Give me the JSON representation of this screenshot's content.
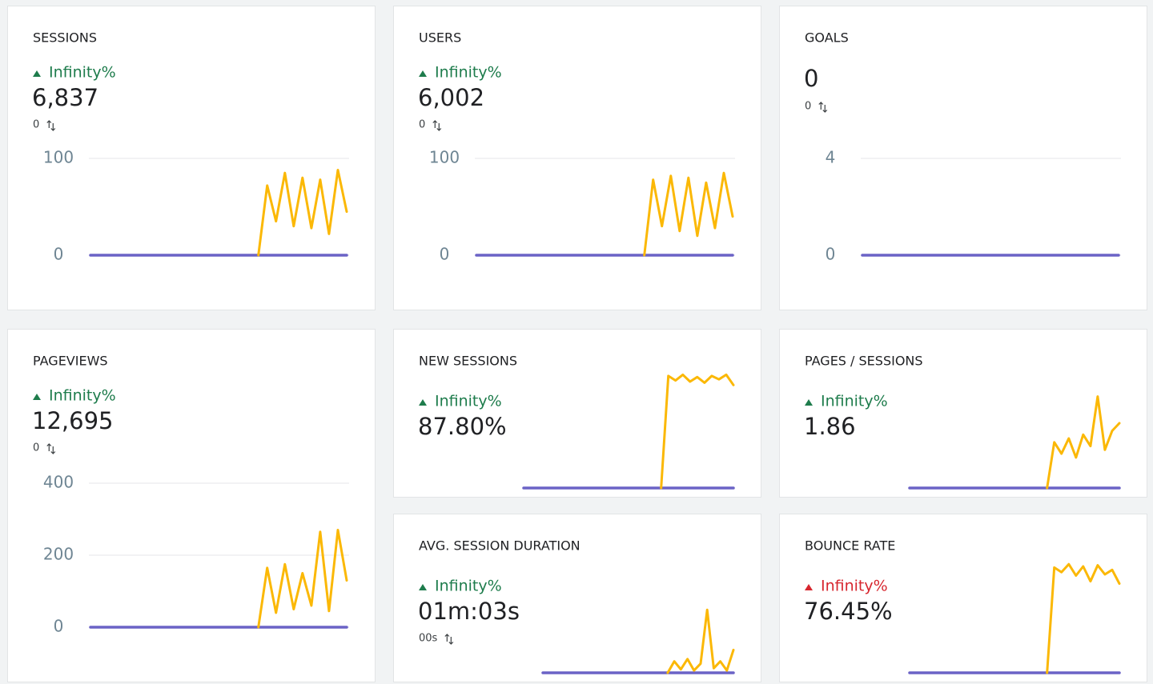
{
  "chart_data": [
    {
      "type": "line",
      "title": "SESSIONS",
      "change": "Infinity%",
      "change_direction": "up",
      "value": "6,837",
      "compare": "0",
      "ylim": [
        0,
        100
      ],
      "yticks": [
        0,
        100
      ],
      "series": [
        {
          "color": "#6b63c6",
          "values": [
            0,
            0,
            0,
            0,
            0,
            0,
            0,
            0,
            0,
            0,
            0,
            0,
            0,
            0,
            0,
            0,
            0,
            0,
            0,
            0,
            0,
            0,
            0,
            0,
            0,
            0,
            0,
            0,
            0,
            0
          ]
        },
        {
          "color": "#fbb806",
          "values": [
            null,
            null,
            null,
            null,
            null,
            null,
            null,
            null,
            null,
            null,
            null,
            null,
            null,
            null,
            null,
            null,
            null,
            null,
            null,
            0,
            72,
            35,
            85,
            30,
            80,
            28,
            78,
            22,
            88,
            45
          ]
        }
      ]
    },
    {
      "type": "line",
      "title": "USERS",
      "change": "Infinity%",
      "change_direction": "up",
      "value": "6,002",
      "compare": "0",
      "ylim": [
        0,
        100
      ],
      "yticks": [
        0,
        100
      ],
      "series": [
        {
          "color": "#6b63c6",
          "values": [
            0,
            0,
            0,
            0,
            0,
            0,
            0,
            0,
            0,
            0,
            0,
            0,
            0,
            0,
            0,
            0,
            0,
            0,
            0,
            0,
            0,
            0,
            0,
            0,
            0,
            0,
            0,
            0,
            0,
            0
          ]
        },
        {
          "color": "#fbb806",
          "values": [
            null,
            null,
            null,
            null,
            null,
            null,
            null,
            null,
            null,
            null,
            null,
            null,
            null,
            null,
            null,
            null,
            null,
            null,
            null,
            0,
            78,
            30,
            82,
            25,
            80,
            20,
            75,
            28,
            85,
            40
          ]
        }
      ]
    },
    {
      "type": "line",
      "title": "GOALS",
      "value": "0",
      "compare": "0",
      "ylim": [
        0,
        4
      ],
      "yticks": [
        0,
        4
      ],
      "series": [
        {
          "color": "#6b63c6",
          "values": [
            0,
            0,
            0,
            0,
            0,
            0,
            0,
            0,
            0,
            0,
            0,
            0,
            0,
            0,
            0,
            0,
            0,
            0,
            0,
            0,
            0,
            0,
            0,
            0,
            0,
            0,
            0,
            0,
            0,
            0
          ]
        }
      ]
    },
    {
      "type": "line",
      "title": "PAGEVIEWS",
      "change": "Infinity%",
      "change_direction": "up",
      "value": "12,695",
      "compare": "0",
      "ylim": [
        0,
        400
      ],
      "yticks": [
        0,
        200,
        400
      ],
      "series": [
        {
          "color": "#6b63c6",
          "values": [
            0,
            0,
            0,
            0,
            0,
            0,
            0,
            0,
            0,
            0,
            0,
            0,
            0,
            0,
            0,
            0,
            0,
            0,
            0,
            0,
            0,
            0,
            0,
            0,
            0,
            0,
            0,
            0,
            0,
            0
          ]
        },
        {
          "color": "#fbb806",
          "values": [
            null,
            null,
            null,
            null,
            null,
            null,
            null,
            null,
            null,
            null,
            null,
            null,
            null,
            null,
            null,
            null,
            null,
            null,
            null,
            0,
            165,
            40,
            175,
            50,
            150,
            60,
            265,
            45,
            270,
            130
          ]
        }
      ]
    },
    {
      "type": "line",
      "title": "NEW SESSIONS",
      "change": "Infinity%",
      "change_direction": "up",
      "value": "87.80%",
      "ylim": [
        0,
        100
      ],
      "series": [
        {
          "color": "#6b63c6",
          "values": [
            0,
            0,
            0,
            0,
            0,
            0,
            0,
            0,
            0,
            0,
            0,
            0,
            0,
            0,
            0,
            0,
            0,
            0,
            0,
            0,
            0,
            0,
            0,
            0,
            0,
            0,
            0,
            0,
            0,
            0
          ]
        },
        {
          "color": "#fbb806",
          "values": [
            null,
            null,
            null,
            null,
            null,
            null,
            null,
            null,
            null,
            null,
            null,
            null,
            null,
            null,
            null,
            null,
            null,
            null,
            null,
            0,
            98,
            94,
            99,
            93,
            97,
            92,
            98,
            95,
            99,
            90
          ]
        }
      ]
    },
    {
      "type": "line",
      "title": "PAGES / SESSIONS",
      "change": "Infinity%",
      "change_direction": "up",
      "value": "1.86",
      "ylim": [
        0,
        3
      ],
      "series": [
        {
          "color": "#6b63c6",
          "values": [
            0,
            0,
            0,
            0,
            0,
            0,
            0,
            0,
            0,
            0,
            0,
            0,
            0,
            0,
            0,
            0,
            0,
            0,
            0,
            0,
            0,
            0,
            0,
            0,
            0,
            0,
            0,
            0,
            0,
            0
          ]
        },
        {
          "color": "#fbb806",
          "values": [
            null,
            null,
            null,
            null,
            null,
            null,
            null,
            null,
            null,
            null,
            null,
            null,
            null,
            null,
            null,
            null,
            null,
            null,
            null,
            0,
            1.2,
            0.9,
            1.3,
            0.8,
            1.4,
            1.1,
            2.4,
            1.0,
            1.5,
            1.7
          ]
        }
      ]
    },
    {
      "type": "line",
      "title": "AVG. SESSION DURATION",
      "change": "Infinity%",
      "change_direction": "up",
      "value": "01m:03s",
      "compare": "00s",
      "ylim": [
        0,
        100
      ],
      "series": [
        {
          "color": "#6b63c6",
          "values": [
            0,
            0,
            0,
            0,
            0,
            0,
            0,
            0,
            0,
            0,
            0,
            0,
            0,
            0,
            0,
            0,
            0,
            0,
            0,
            0,
            0,
            0,
            0,
            0,
            0,
            0,
            0,
            0,
            0,
            0
          ]
        },
        {
          "color": "#fbb806",
          "values": [
            null,
            null,
            null,
            null,
            null,
            null,
            null,
            null,
            null,
            null,
            null,
            null,
            null,
            null,
            null,
            null,
            null,
            null,
            null,
            0,
            10,
            3,
            12,
            2,
            8,
            55,
            4,
            10,
            2,
            20
          ]
        }
      ]
    },
    {
      "type": "line",
      "title": "BOUNCE RATE",
      "change": "Infinity%",
      "change_direction": "down",
      "value": "76.45%",
      "ylim": [
        0,
        100
      ],
      "series": [
        {
          "color": "#6b63c6",
          "values": [
            0,
            0,
            0,
            0,
            0,
            0,
            0,
            0,
            0,
            0,
            0,
            0,
            0,
            0,
            0,
            0,
            0,
            0,
            0,
            0,
            0,
            0,
            0,
            0,
            0,
            0,
            0,
            0,
            0,
            0
          ]
        },
        {
          "color": "#fbb806",
          "values": [
            null,
            null,
            null,
            null,
            null,
            null,
            null,
            null,
            null,
            null,
            null,
            null,
            null,
            null,
            null,
            null,
            null,
            null,
            null,
            0,
            92,
            88,
            95,
            85,
            93,
            80,
            94,
            86,
            90,
            78
          ]
        }
      ]
    }
  ]
}
